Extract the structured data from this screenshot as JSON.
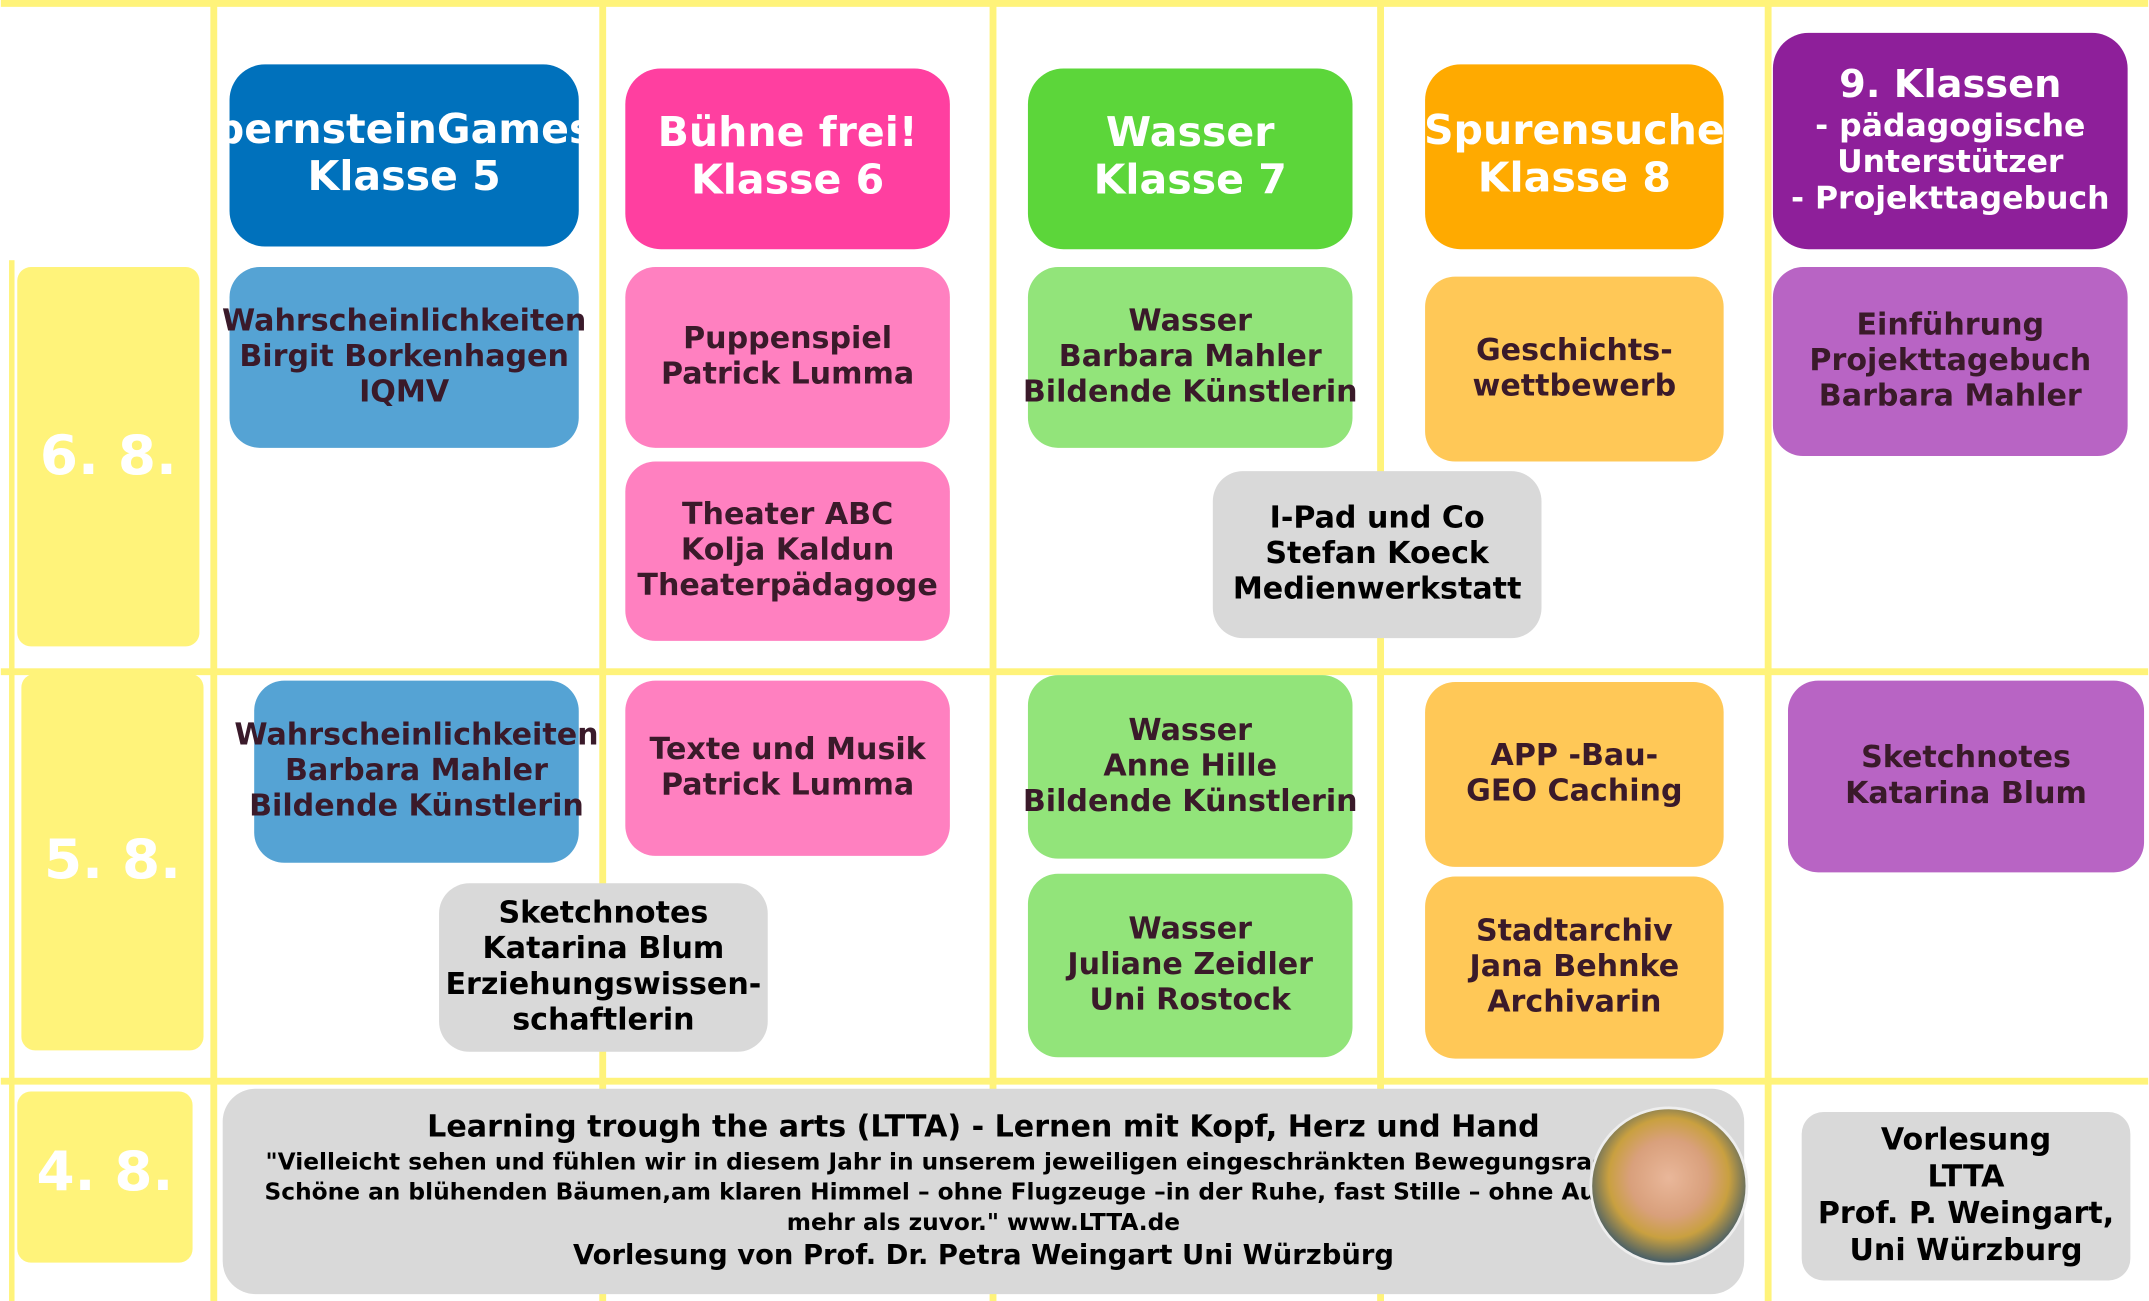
{
  "headers": [
    {
      "lines": [
        "bernsteinGames",
        "Klasse 5"
      ]
    },
    {
      "lines": [
        "Bühne frei!",
        "Klasse 6"
      ]
    },
    {
      "lines": [
        "Wasser",
        "Klasse 7"
      ]
    },
    {
      "lines": [
        "Spurensuche",
        "Klasse 8"
      ]
    },
    {
      "lines": [
        "9. Klassen",
        "- pädagogische",
        "Unterstützer",
        "- Projekttagebuch"
      ]
    }
  ],
  "dates": [
    "6. 8.",
    "5. 8.",
    "4. 8."
  ],
  "cells": [
    {
      "lines": [
        "Wahrscheinlichkeiten",
        "Birgit Borkenhagen",
        "IQMV"
      ]
    },
    {
      "lines": [
        "Puppenspiel",
        "Patrick Lumma"
      ]
    },
    {
      "lines": [
        "Theater ABC",
        "Kolja Kaldun",
        "Theaterpädagoge"
      ]
    },
    {
      "lines": [
        "Wasser",
        "Barbara Mahler",
        "Bildende Künstlerin"
      ]
    },
    {
      "lines": [
        "I-Pad und Co",
        "Stefan Koeck",
        "Medienwerkstatt"
      ]
    },
    {
      "lines": [
        "Geschichts-",
        "wettbewerb"
      ]
    },
    {
      "lines": [
        "Einführung",
        "Projekttagebuch",
        "Barbara Mahler"
      ]
    },
    {
      "lines": [
        "Wahrscheinlichkeiten",
        "Barbara Mahler",
        "Bildende Künstlerin"
      ]
    },
    {
      "lines": [
        "Texte und Musik",
        "Patrick Lumma"
      ]
    },
    {
      "lines": [
        "Sketchnotes",
        "Katarina Blum",
        "Erziehungswissen-",
        "schaftlerin"
      ]
    },
    {
      "lines": [
        "Wasser",
        "Anne Hille",
        "Bildende Künstlerin"
      ]
    },
    {
      "lines": [
        "Wasser",
        "Juliane Zeidler",
        "Uni Rostock"
      ]
    },
    {
      "lines": [
        "APP -Bau-",
        "GEO Caching"
      ]
    },
    {
      "lines": [
        "Stadtarchiv",
        "Jana Behnke",
        "Archivarin"
      ]
    },
    {
      "lines": [
        "Sketchnotes",
        "Katarina Blum"
      ]
    },
    {
      "lines": [
        "Learning trough the arts (LTTA) - Lernen mit Kopf, Herz und Hand",
        "\"Vielleicht sehen und fühlen wir in diesem Jahr in unserem jeweiligen eingeschränkten Bewegungsradius das",
        "Schöne an blühenden Bäumen,am klaren Himmel – ohne Flugzeuge –in der Ruhe, fast Stille – ohne Autolärm –",
        "mehr als zuvor.\"  www.LTTA.de",
        "Vorlesung von Prof. Dr. Petra Weingart Uni Würzbürg"
      ]
    },
    {
      "lines": [
        "Vorlesung",
        "LTTA",
        "Prof. P. Weingart,",
        "Uni Würzburg"
      ]
    }
  ]
}
